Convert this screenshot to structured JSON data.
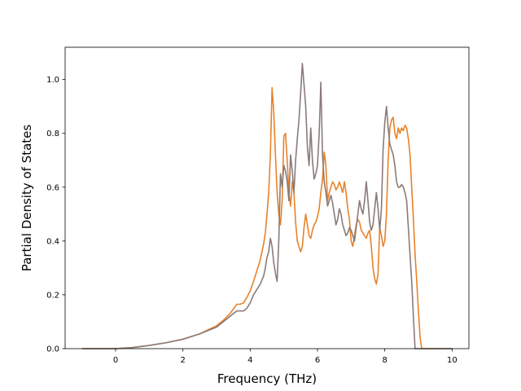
{
  "chart_data": {
    "type": "line",
    "xlabel": "Frequency (THz)",
    "ylabel": "Partial Density of States",
    "xlim": [
      -1.5,
      10.5
    ],
    "ylim": [
      0.0,
      1.12
    ],
    "xticks": [
      0,
      2,
      4,
      6,
      8,
      10
    ],
    "xtick_labels": [
      "0",
      "2",
      "4",
      "6",
      "8",
      "10"
    ],
    "yticks": [
      0.0,
      0.2,
      0.4,
      0.6,
      0.8,
      1.0
    ],
    "ytick_labels": [
      "0.0",
      "0.2",
      "0.4",
      "0.6",
      "0.8",
      "1.0"
    ],
    "grid": false,
    "series": [
      {
        "color": "#e8822a",
        "x": [
          -1.0,
          -0.5,
          0.0,
          0.5,
          1.0,
          1.5,
          2.0,
          2.5,
          3.0,
          3.2,
          3.4,
          3.6,
          3.7,
          3.8,
          3.9,
          4.0,
          4.1,
          4.2,
          4.3,
          4.4,
          4.45,
          4.5,
          4.55,
          4.6,
          4.65,
          4.7,
          4.75,
          4.8,
          4.85,
          4.9,
          4.95,
          5.0,
          5.05,
          5.1,
          5.15,
          5.2,
          5.25,
          5.3,
          5.35,
          5.4,
          5.45,
          5.5,
          5.55,
          5.6,
          5.65,
          5.7,
          5.75,
          5.8,
          5.85,
          5.9,
          5.95,
          6.0,
          6.05,
          6.1,
          6.15,
          6.2,
          6.25,
          6.3,
          6.35,
          6.4,
          6.45,
          6.5,
          6.55,
          6.6,
          6.65,
          6.7,
          6.75,
          6.8,
          6.85,
          6.9,
          6.95,
          7.0,
          7.05,
          7.1,
          7.15,
          7.2,
          7.25,
          7.3,
          7.35,
          7.4,
          7.45,
          7.5,
          7.55,
          7.6,
          7.65,
          7.7,
          7.75,
          7.8,
          7.85,
          7.9,
          7.95,
          8.0,
          8.05,
          8.1,
          8.15,
          8.2,
          8.25,
          8.3,
          8.35,
          8.4,
          8.45,
          8.5,
          8.55,
          8.6,
          8.65,
          8.7,
          8.75,
          8.8,
          8.85,
          8.9,
          8.95,
          9.0,
          9.05,
          9.1,
          9.2,
          9.5,
          10.0
        ],
        "y": [
          0.0,
          0.0,
          0.0,
          0.004,
          0.012,
          0.022,
          0.035,
          0.055,
          0.085,
          0.105,
          0.13,
          0.165,
          0.165,
          0.17,
          0.19,
          0.215,
          0.25,
          0.29,
          0.33,
          0.39,
          0.43,
          0.5,
          0.58,
          0.72,
          0.97,
          0.88,
          0.72,
          0.58,
          0.5,
          0.46,
          0.55,
          0.79,
          0.8,
          0.7,
          0.58,
          0.53,
          0.62,
          0.58,
          0.47,
          0.4,
          0.38,
          0.36,
          0.38,
          0.45,
          0.5,
          0.46,
          0.42,
          0.41,
          0.44,
          0.46,
          0.47,
          0.49,
          0.52,
          0.58,
          0.63,
          0.73,
          0.68,
          0.55,
          0.58,
          0.6,
          0.62,
          0.61,
          0.59,
          0.6,
          0.62,
          0.6,
          0.58,
          0.62,
          0.58,
          0.52,
          0.48,
          0.4,
          0.38,
          0.42,
          0.46,
          0.48,
          0.47,
          0.44,
          0.43,
          0.42,
          0.41,
          0.43,
          0.44,
          0.38,
          0.3,
          0.26,
          0.24,
          0.28,
          0.45,
          0.42,
          0.38,
          0.4,
          0.5,
          0.7,
          0.82,
          0.85,
          0.86,
          0.8,
          0.78,
          0.82,
          0.8,
          0.82,
          0.81,
          0.83,
          0.82,
          0.78,
          0.72,
          0.6,
          0.48,
          0.35,
          0.25,
          0.14,
          0.04,
          0.0,
          0.0,
          0.0,
          0.0
        ]
      },
      {
        "color": "#8a7b78",
        "x": [
          -1.0,
          -0.5,
          0.0,
          0.5,
          1.0,
          1.5,
          2.0,
          2.5,
          3.0,
          3.2,
          3.4,
          3.6,
          3.7,
          3.8,
          3.9,
          4.0,
          4.1,
          4.2,
          4.3,
          4.4,
          4.45,
          4.5,
          4.55,
          4.6,
          4.65,
          4.7,
          4.75,
          4.8,
          4.85,
          4.9,
          4.95,
          5.0,
          5.05,
          5.1,
          5.15,
          5.2,
          5.25,
          5.3,
          5.35,
          5.4,
          5.45,
          5.5,
          5.55,
          5.6,
          5.65,
          5.7,
          5.75,
          5.8,
          5.85,
          5.9,
          5.95,
          6.0,
          6.05,
          6.1,
          6.15,
          6.2,
          6.25,
          6.3,
          6.35,
          6.4,
          6.45,
          6.5,
          6.55,
          6.6,
          6.65,
          6.7,
          6.75,
          6.8,
          6.85,
          6.9,
          6.95,
          7.0,
          7.05,
          7.1,
          7.15,
          7.2,
          7.25,
          7.3,
          7.35,
          7.4,
          7.45,
          7.5,
          7.55,
          7.6,
          7.65,
          7.7,
          7.75,
          7.8,
          7.85,
          7.9,
          7.95,
          8.0,
          8.05,
          8.1,
          8.15,
          8.2,
          8.25,
          8.3,
          8.35,
          8.4,
          8.45,
          8.5,
          8.55,
          8.6,
          8.65,
          8.7,
          8.75,
          8.8,
          8.85,
          8.9,
          8.95,
          9.0,
          9.05,
          9.1,
          9.2,
          9.5,
          10.0
        ],
        "y": [
          0.0,
          0.0,
          0.0,
          0.004,
          0.012,
          0.022,
          0.035,
          0.055,
          0.08,
          0.1,
          0.12,
          0.14,
          0.14,
          0.14,
          0.15,
          0.17,
          0.2,
          0.22,
          0.24,
          0.27,
          0.3,
          0.34,
          0.36,
          0.41,
          0.38,
          0.32,
          0.28,
          0.25,
          0.4,
          0.65,
          0.6,
          0.68,
          0.66,
          0.62,
          0.55,
          0.72,
          0.66,
          0.58,
          0.7,
          0.78,
          0.85,
          0.95,
          1.06,
          0.98,
          0.9,
          0.75,
          0.68,
          0.82,
          0.7,
          0.63,
          0.65,
          0.68,
          0.8,
          0.99,
          0.72,
          0.62,
          0.58,
          0.53,
          0.55,
          0.57,
          0.54,
          0.5,
          0.46,
          0.48,
          0.52,
          0.5,
          0.46,
          0.44,
          0.42,
          0.43,
          0.45,
          0.44,
          0.42,
          0.4,
          0.45,
          0.5,
          0.55,
          0.52,
          0.5,
          0.55,
          0.62,
          0.55,
          0.47,
          0.44,
          0.46,
          0.52,
          0.58,
          0.52,
          0.44,
          0.52,
          0.74,
          0.84,
          0.9,
          0.82,
          0.76,
          0.74,
          0.72,
          0.68,
          0.62,
          0.6,
          0.6,
          0.61,
          0.6,
          0.58,
          0.55,
          0.45,
          0.35,
          0.25,
          0.12,
          0.0,
          0.0,
          0.0,
          0.0,
          0.0,
          0.0,
          0.0,
          0.0
        ]
      }
    ]
  }
}
